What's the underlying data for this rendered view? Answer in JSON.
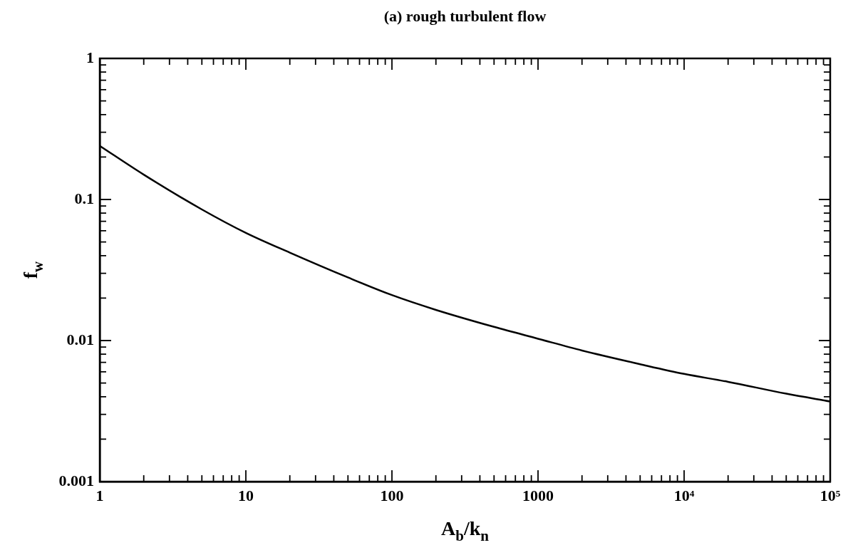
{
  "chart_data": {
    "type": "line",
    "title": "(a) rough turbulent flow",
    "xlabel": "A$_{b}$/k$_{n}$",
    "ylabel": "f$_{w}$",
    "log": "xy",
    "marker": "none",
    "x": [
      1,
      2,
      5,
      10,
      20,
      50,
      100,
      200,
      500,
      1000,
      2000,
      5000,
      10000,
      20000,
      50000,
      100000
    ],
    "series": [
      {
        "color": "#000000",
        "values": [
          0.24,
          0.15,
          0.085,
          0.058,
          0.042,
          0.028,
          0.021,
          0.0165,
          0.0125,
          0.0103,
          0.0085,
          0.0068,
          0.0058,
          0.0051,
          0.0042,
          0.0037
        ]
      }
    ],
    "xlim": [
      1,
      100000
    ],
    "ylim": [
      0.001,
      1
    ],
    "xticks": [
      1,
      {
        "value": 2,
        "label": null
      },
      {
        "value": 3,
        "label": null
      },
      {
        "value": 4,
        "label": null
      },
      {
        "value": 5,
        "label": null
      },
      {
        "value": 6,
        "label": null
      },
      {
        "value": 7,
        "label": null
      },
      {
        "value": 8,
        "label": null
      },
      {
        "value": 9,
        "label": null
      },
      10,
      {
        "value": 20,
        "label": null
      },
      {
        "value": 30,
        "label": null
      },
      {
        "value": 40,
        "label": null
      },
      {
        "value": 50,
        "label": null
      },
      {
        "value": 60,
        "label": null
      },
      {
        "value": 70,
        "label": null
      },
      {
        "value": 80,
        "label": null
      },
      {
        "value": 90,
        "label": null
      },
      100,
      {
        "value": 200,
        "label": null
      },
      {
        "value": 300,
        "label": null
      },
      {
        "value": 400,
        "label": null
      },
      {
        "value": 500,
        "label": null
      },
      {
        "value": 600,
        "label": null
      },
      {
        "value": 700,
        "label": null
      },
      {
        "value": 800,
        "label": null
      },
      {
        "value": 900,
        "label": null
      },
      1000,
      {
        "value": 2000,
        "label": null
      },
      {
        "value": 3000,
        "label": null
      },
      {
        "value": 4000,
        "label": null
      },
      {
        "value": 5000,
        "label": null
      },
      {
        "value": 6000,
        "label": null
      },
      {
        "value": 7000,
        "label": null
      },
      {
        "value": 8000,
        "label": null
      },
      {
        "value": 9000,
        "label": null
      },
      {
        "value": 10000,
        "label": "10⁴"
      },
      {
        "value": 20000,
        "label": null
      },
      {
        "value": 30000,
        "label": null
      },
      {
        "value": 40000,
        "label": null
      },
      {
        "value": 50000,
        "label": null
      },
      {
        "value": 60000,
        "label": null
      },
      {
        "value": 70000,
        "label": null
      },
      {
        "value": 80000,
        "label": null
      },
      {
        "value": 90000,
        "label": null
      },
      {
        "value": 100000,
        "label": "10⁵"
      }
    ],
    "yticks": [
      0.001,
      {
        "value": 0.002,
        "label": null
      },
      {
        "value": 0.003,
        "label": null
      },
      {
        "value": 0.004,
        "label": null
      },
      {
        "value": 0.005,
        "label": null
      },
      {
        "value": 0.006,
        "label": null
      },
      {
        "value": 0.007,
        "label": null
      },
      {
        "value": 0.008,
        "label": null
      },
      {
        "value": 0.009,
        "label": null
      },
      0.01,
      {
        "value": 0.02,
        "label": null
      },
      {
        "value": 0.03,
        "label": null
      },
      {
        "value": 0.04,
        "label": null
      },
      {
        "value": 0.05,
        "label": null
      },
      {
        "value": 0.06,
        "label": null
      },
      {
        "value": 0.07,
        "label": null
      },
      {
        "value": 0.08,
        "label": null
      },
      {
        "value": 0.09,
        "label": null
      },
      0.1,
      {
        "value": 0.2,
        "label": null
      },
      {
        "value": 0.3,
        "label": null
      },
      {
        "value": 0.4,
        "label": null
      },
      {
        "value": 0.5,
        "label": null
      },
      {
        "value": 0.6,
        "label": null
      },
      {
        "value": 0.7,
        "label": null
      },
      {
        "value": 0.8,
        "label": null
      },
      {
        "value": 0.9,
        "label": null
      },
      1
    ]
  }
}
